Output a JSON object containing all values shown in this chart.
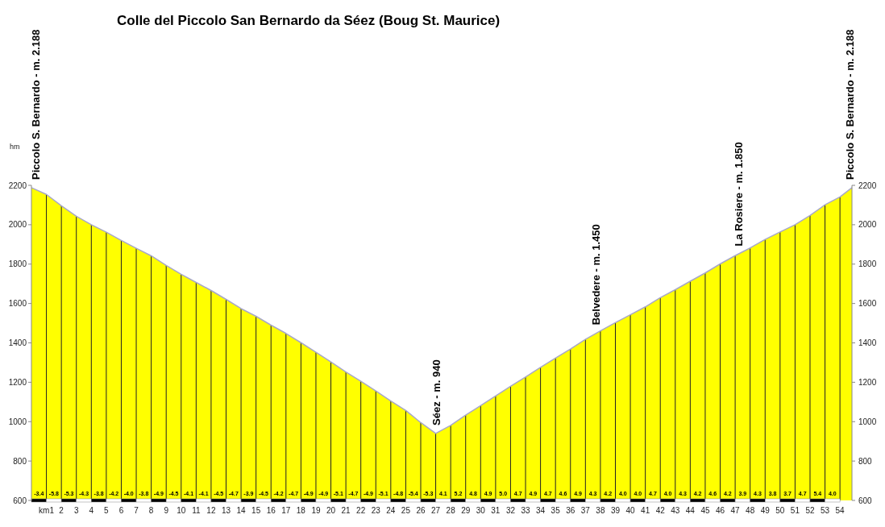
{
  "chart_data": {
    "type": "area",
    "title": "Colle del Piccolo San Bernardo da Séez (Boug St. Maurice)",
    "ylabel": "hm",
    "x": [
      0,
      1,
      2,
      3,
      4,
      5,
      6,
      7,
      8,
      9,
      10,
      11,
      12,
      13,
      14,
      15,
      16,
      17,
      18,
      19,
      20,
      21,
      22,
      23,
      24,
      25,
      26,
      27,
      28,
      29,
      30,
      31,
      32,
      33,
      34,
      35,
      36,
      37,
      38,
      39,
      40,
      41,
      42,
      43,
      44,
      45,
      46,
      47,
      48,
      49,
      50,
      51,
      52,
      53,
      54,
      54.8
    ],
    "series": [
      {
        "color": "#ffff00",
        "values": [
          2188,
          2154,
          2096,
          2043,
          2000,
          1962,
          1920,
          1880,
          1842,
          1793,
          1748,
          1707,
          1666,
          1621,
          1574,
          1535,
          1490,
          1448,
          1401,
          1352,
          1303,
          1252,
          1205,
          1156,
          1105,
          1057,
          995,
          940,
          981,
          1033,
          1081,
          1130,
          1180,
          1227,
          1276,
          1323,
          1369,
          1418,
          1461,
          1503,
          1543,
          1583,
          1630,
          1670,
          1713,
          1755,
          1801,
          1843,
          1882,
          1925,
          1963,
          2000,
          2047,
          2101,
          2141,
          2188
        ]
      }
    ],
    "xlim": [
      0,
      54.8
    ],
    "xticks": [
      {
        "value": 1,
        "label": "km1"
      },
      2,
      3,
      4,
      5,
      6,
      7,
      8,
      9,
      10,
      11,
      12,
      13,
      14,
      15,
      16,
      17,
      18,
      19,
      20,
      21,
      22,
      23,
      24,
      25,
      26,
      27,
      28,
      29,
      30,
      31,
      32,
      33,
      34,
      35,
      36,
      37,
      38,
      39,
      40,
      41,
      42,
      43,
      44,
      45,
      46,
      47,
      48,
      49,
      50,
      51,
      52,
      53,
      54
    ],
    "ylim": [
      600,
      2200
    ],
    "yticks": [
      600,
      800,
      1000,
      1200,
      1400,
      1600,
      1800,
      2000,
      2200
    ],
    "y2lim": [
      600,
      2200
    ],
    "y2ticks": [
      600,
      800,
      1000,
      1200,
      1400,
      1600,
      1800,
      2000,
      2200
    ],
    "grid": "x",
    "annotations": [
      {
        "text": "Piccolo S. Bernardo - m. 2.188",
        "x": 0,
        "y": 2188
      },
      {
        "text": "Séez - m. 940",
        "x": 27,
        "y": 940
      },
      {
        "text": "Belvedere - m. 1.450",
        "x": 37.7,
        "y": 1450
      },
      {
        "text": "La Rosiere - m. 1.850",
        "x": 47.2,
        "y": 1850
      },
      {
        "text": "Piccolo S. Bernardo - m. 2.188",
        "x": 54.8,
        "y": 2188
      },
      {
        "text": "-3.4",
        "x": 0.5,
        "y": 600
      },
      {
        "text": "-5.8",
        "x": 1.5,
        "y": 600
      },
      {
        "text": "-5.3",
        "x": 2.5,
        "y": 600
      },
      {
        "text": "-4.3",
        "x": 3.5,
        "y": 600
      },
      {
        "text": "-3.8",
        "x": 4.5,
        "y": 600
      },
      {
        "text": "-4.2",
        "x": 5.5,
        "y": 600
      },
      {
        "text": "-4.0",
        "x": 6.5,
        "y": 600
      },
      {
        "text": "-3.8",
        "x": 7.5,
        "y": 600
      },
      {
        "text": "-4.9",
        "x": 8.5,
        "y": 600
      },
      {
        "text": "-4.5",
        "x": 9.5,
        "y": 600
      },
      {
        "text": "-4.1",
        "x": 10.5,
        "y": 600
      },
      {
        "text": "-4.1",
        "x": 11.5,
        "y": 600
      },
      {
        "text": "-4.5",
        "x": 12.5,
        "y": 600
      },
      {
        "text": "-4.7",
        "x": 13.5,
        "y": 600
      },
      {
        "text": "-3.9",
        "x": 14.5,
        "y": 600
      },
      {
        "text": "-4.5",
        "x": 15.5,
        "y": 600
      },
      {
        "text": "-4.2",
        "x": 16.5,
        "y": 600
      },
      {
        "text": "-4.7",
        "x": 17.5,
        "y": 600
      },
      {
        "text": "-4.9",
        "x": 18.5,
        "y": 600
      },
      {
        "text": "-4.9",
        "x": 19.5,
        "y": 600
      },
      {
        "text": "-5.1",
        "x": 20.5,
        "y": 600
      },
      {
        "text": "-4.7",
        "x": 21.5,
        "y": 600
      },
      {
        "text": "-4.9",
        "x": 22.5,
        "y": 600
      },
      {
        "text": "-5.1",
        "x": 23.5,
        "y": 600
      },
      {
        "text": "-4.8",
        "x": 24.5,
        "y": 600
      },
      {
        "text": "-5.4",
        "x": 25.5,
        "y": 600
      },
      {
        "text": "-5.3",
        "x": 26.5,
        "y": 600
      },
      {
        "text": "4.1",
        "x": 27.5,
        "y": 600
      },
      {
        "text": "5.2",
        "x": 28.5,
        "y": 600
      },
      {
        "text": "4.8",
        "x": 29.5,
        "y": 600
      },
      {
        "text": "4.9",
        "x": 30.5,
        "y": 600
      },
      {
        "text": "5.0",
        "x": 31.5,
        "y": 600
      },
      {
        "text": "4.7",
        "x": 32.5,
        "y": 600
      },
      {
        "text": "4.9",
        "x": 33.5,
        "y": 600
      },
      {
        "text": "4.7",
        "x": 34.5,
        "y": 600
      },
      {
        "text": "4.6",
        "x": 35.5,
        "y": 600
      },
      {
        "text": "4.9",
        "x": 36.5,
        "y": 600
      },
      {
        "text": "4.3",
        "x": 37.5,
        "y": 600
      },
      {
        "text": "4.2",
        "x": 38.5,
        "y": 600
      },
      {
        "text": "4.0",
        "x": 39.5,
        "y": 600
      },
      {
        "text": "4.0",
        "x": 40.5,
        "y": 600
      },
      {
        "text": "4.7",
        "x": 41.5,
        "y": 600
      },
      {
        "text": "4.0",
        "x": 42.5,
        "y": 600
      },
      {
        "text": "4.3",
        "x": 43.5,
        "y": 600
      },
      {
        "text": "4.2",
        "x": 44.5,
        "y": 600
      },
      {
        "text": "4.6",
        "x": 45.5,
        "y": 600
      },
      {
        "text": "4.2",
        "x": 46.5,
        "y": 600
      },
      {
        "text": "3.9",
        "x": 47.5,
        "y": 600
      },
      {
        "text": "4.3",
        "x": 48.5,
        "y": 600
      },
      {
        "text": "3.8",
        "x": 49.5,
        "y": 600
      },
      {
        "text": "3.7",
        "x": 50.5,
        "y": 600
      },
      {
        "text": "4.7",
        "x": 51.5,
        "y": 600
      },
      {
        "text": "5.4",
        "x": 52.5,
        "y": 600
      },
      {
        "text": "4.0",
        "x": 53.5,
        "y": 600
      }
    ]
  }
}
